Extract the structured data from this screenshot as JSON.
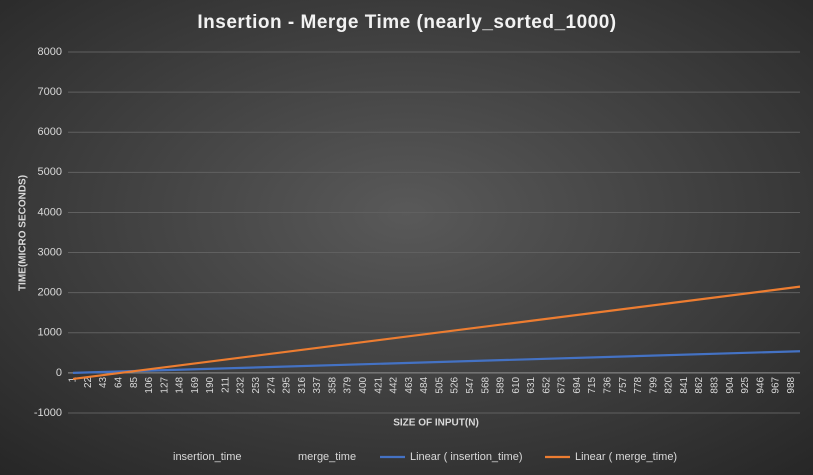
{
  "chart_data": {
    "type": "line",
    "title": "Insertion - Merge Time (nearly_sorted_1000)",
    "x_label": "SIZE OF INPUT(N)",
    "y_label": "TIME(MICRO SECONDS)",
    "xlim": [
      1,
      1000
    ],
    "xticks": [
      1,
      22,
      43,
      64,
      85,
      106,
      127,
      148,
      169,
      190,
      211,
      232,
      253,
      274,
      295,
      316,
      337,
      358,
      379,
      400,
      421,
      442,
      463,
      484,
      505,
      526,
      547,
      568,
      589,
      610,
      631,
      652,
      673,
      694,
      715,
      736,
      757,
      778,
      799,
      820,
      841,
      862,
      883,
      904,
      925,
      946,
      967,
      988
    ],
    "ylim": [
      -1000,
      8000
    ],
    "yticks": [
      -1000,
      0,
      1000,
      2000,
      3000,
      4000,
      5000,
      6000,
      7000,
      8000
    ],
    "grid": true,
    "legend": "bottom",
    "series": [
      {
        "name": "insertion_time"
      },
      {
        "name": "merge_time"
      },
      {
        "name": "Linear ( insertion_time)",
        "color": "#4472c4",
        "x": [
          1,
          1000
        ],
        "values": [
          0,
          540
        ]
      },
      {
        "name": "Linear ( merge_time)",
        "color": "#ed7d31",
        "x": [
          1,
          1000
        ],
        "values": [
          -150,
          2150
        ]
      }
    ]
  }
}
